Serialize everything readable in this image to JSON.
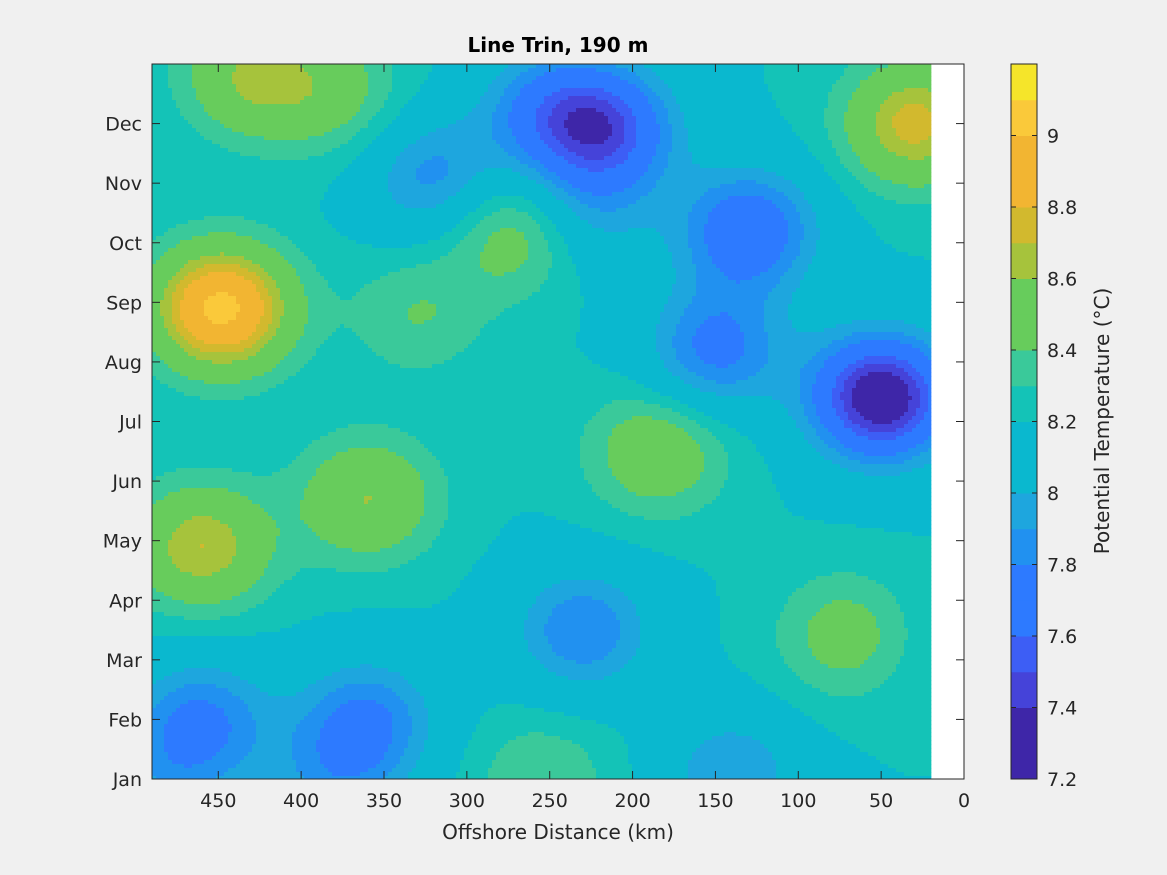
{
  "chart_data": {
    "type": "heatmap",
    "subtype": "filled-contour",
    "title": "Line Trin, 190 m",
    "xlabel": "Offshore Distance (km)",
    "ylabel": "",
    "colorbar_label": "Potential Temperature (°C)",
    "x_reversed": true,
    "xlim": [
      0,
      490
    ],
    "x_ticks": [
      450,
      400,
      350,
      300,
      250,
      200,
      150,
      100,
      50,
      0
    ],
    "y_ticks": [
      "Jan",
      "Feb",
      "Mar",
      "Apr",
      "May",
      "Jun",
      "Jul",
      "Aug",
      "Sep",
      "Oct",
      "Nov",
      "Dec"
    ],
    "data_x_range_km": [
      20,
      490
    ],
    "color_limits": [
      7.2,
      9.2
    ],
    "contour_step": 0.1,
    "colorbar_ticks": [
      7.2,
      7.4,
      7.6,
      7.8,
      8,
      8.2,
      8.4,
      8.6,
      8.8,
      9
    ],
    "colorbar_tick_labels": [
      "7.2",
      "7.4",
      "7.6",
      "7.8",
      "8",
      "8.2",
      "8.4",
      "8.6",
      "8.8",
      "9"
    ],
    "colormap": [
      "#3e26a8",
      "#4543d9",
      "#3d5ef5",
      "#2d7aff",
      "#2191f0",
      "#1ea6de",
      "#0ab8cf",
      "#14c3b7",
      "#3ac99a",
      "#67cc5c",
      "#a6c33c",
      "#d2b92e",
      "#f2b532",
      "#fac93a",
      "#f5e52a"
    ],
    "background_color": "#ffffff",
    "features": [
      {
        "x": 448,
        "month": 7.9,
        "value": 9.05
      },
      {
        "x": 460,
        "month": 3.9,
        "value": 8.7
      },
      {
        "x": 430,
        "month": 11.8,
        "value": 8.6
      },
      {
        "x": 360,
        "month": 4.7,
        "value": 8.6
      },
      {
        "x": 270,
        "month": 9.2,
        "value": 8.55
      },
      {
        "x": 185,
        "month": 5.5,
        "value": 8.55
      },
      {
        "x": 70,
        "month": 2.4,
        "value": 8.5
      },
      {
        "x": 30,
        "month": 11.0,
        "value": 8.75
      },
      {
        "x": 380,
        "month": 11.5,
        "value": 8.45
      },
      {
        "x": 330,
        "month": 7.8,
        "value": 8.4
      },
      {
        "x": 255,
        "month": 0.0,
        "value": 8.4
      },
      {
        "x": 50,
        "month": 6.4,
        "value": 7.25
      },
      {
        "x": 130,
        "month": 9.2,
        "value": 7.65
      },
      {
        "x": 215,
        "month": 10.9,
        "value": 7.6
      },
      {
        "x": 150,
        "month": 7.2,
        "value": 7.75
      },
      {
        "x": 230,
        "month": 2.5,
        "value": 7.8
      },
      {
        "x": 360,
        "month": 1.0,
        "value": 7.8
      },
      {
        "x": 460,
        "month": 1.0,
        "value": 7.8
      },
      {
        "x": 320,
        "month": 10.1,
        "value": 7.85
      },
      {
        "x": 480,
        "month": 0.0,
        "value": 8.0
      },
      {
        "x": 140,
        "month": 0.1,
        "value": 7.9
      },
      {
        "x": 380,
        "month": 0.0,
        "value": 7.95
      },
      {
        "x": 180,
        "month": 9.5,
        "value": 8.2
      },
      {
        "x": 450,
        "month": 6.1,
        "value": 8.2
      },
      {
        "x": 40,
        "month": 2.3,
        "value": 8.15
      },
      {
        "x": 250,
        "month": 11.2,
        "value": 7.8
      },
      {
        "x": 230,
        "month": 9.5,
        "value": 7.95
      }
    ]
  }
}
